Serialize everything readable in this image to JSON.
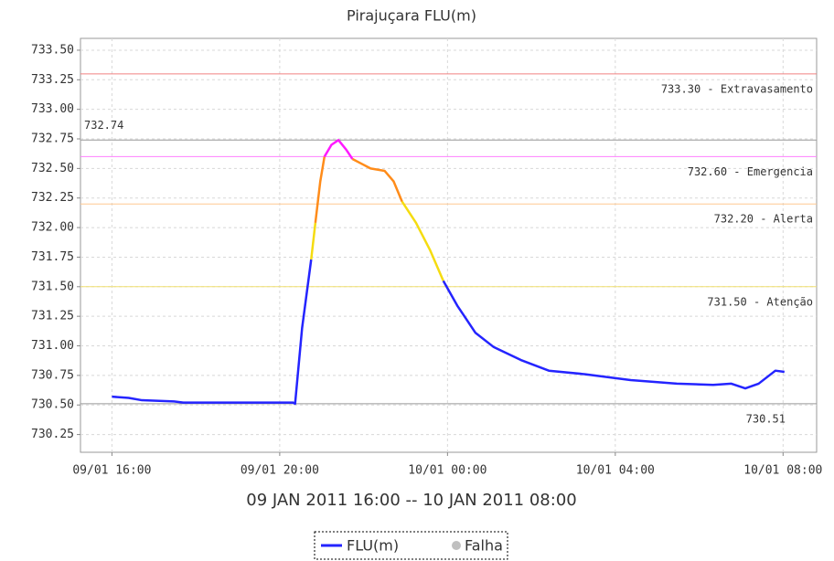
{
  "chart_data": {
    "type": "line",
    "title": "Pirajuçara FLU(m)",
    "x_label": "09 JAN 2011 16:00 -- 10 JAN 2011 08:00",
    "xlim": [
      "2011-01-09 15:15",
      "2011-01-10 08:48"
    ],
    "xticks": [
      {
        "value": "2011-01-09 16:00",
        "label": "09/01 16:00"
      },
      {
        "value": "2011-01-09 20:00",
        "label": "09/01 20:00"
      },
      {
        "value": "2011-01-10 00:00",
        "label": "10/01 00:00"
      },
      {
        "value": "2011-01-10 04:00",
        "label": "10/01 04:00"
      },
      {
        "value": "2011-01-10 08:00",
        "label": "10/01 08:00"
      }
    ],
    "ylim": [
      730.1,
      733.6
    ],
    "yticks": [
      {
        "value": 730.25,
        "label": "730.25"
      },
      {
        "value": 730.5,
        "label": "730.50"
      },
      {
        "value": 730.75,
        "label": "730.75"
      },
      {
        "value": 731,
        "label": "731.00"
      },
      {
        "value": 731.25,
        "label": "731.25"
      },
      {
        "value": 731.5,
        "label": "731.50"
      },
      {
        "value": 731.75,
        "label": "731.75"
      },
      {
        "value": 732,
        "label": "732.00"
      },
      {
        "value": 732.25,
        "label": "732.25"
      },
      {
        "value": 732.5,
        "label": "732.50"
      },
      {
        "value": 732.75,
        "label": "732.75"
      },
      {
        "value": 733,
        "label": "733.00"
      },
      {
        "value": 733.25,
        "label": "733.25"
      },
      {
        "value": 733.5,
        "label": "733.50"
      }
    ],
    "grid": true,
    "thresholds": [
      {
        "value": 731.5,
        "label": "731.50 - Atenção",
        "color": "#f0e070",
        "series_color": "#f5dc10"
      },
      {
        "value": 732.2,
        "label": "732.20 - Alerta",
        "color": "#ffc890",
        "series_color": "#ff8c1a"
      },
      {
        "value": 732.6,
        "label": "732.60 - Emergencia",
        "color": "#ff80ff",
        "series_color": "#ff1aff"
      },
      {
        "value": 733.3,
        "label": "733.30 - Extravasamento",
        "color": "#f08080",
        "series_color": "#ff0000"
      }
    ],
    "max_line": 732.74,
    "min_line": 730.51,
    "legend": [
      "FLU(m)",
      "Falha"
    ],
    "falha_color": "#c0c0c0",
    "series": [
      {
        "name": "FLU(m)",
        "color": "#2424ff",
        "x": [
          "2011-01-09 16:00",
          "2011-01-09 16:24",
          "2011-01-09 16:43",
          "2011-01-09 17:29",
          "2011-01-09 17:42",
          "2011-01-09 20:19",
          "2011-01-09 20:22",
          "2011-01-09 20:32",
          "2011-01-09 20:45",
          "2011-01-09 20:51",
          "2011-01-09 20:58",
          "2011-01-09 21:04",
          "2011-01-09 21:14",
          "2011-01-09 21:24",
          "2011-01-09 21:35",
          "2011-01-09 21:44",
          "2011-01-09 21:57",
          "2011-01-09 22:10",
          "2011-01-09 22:30",
          "2011-01-09 22:43",
          "2011-01-09 22:55",
          "2011-01-09 23:15",
          "2011-01-09 23:35",
          "2011-01-09 23:54",
          "2011-01-10 00:14",
          "2011-01-10 00:40",
          "2011-01-10 01:06",
          "2011-01-10 01:45",
          "2011-01-10 02:25",
          "2011-01-10 03:17",
          "2011-01-10 04:22",
          "2011-01-10 05:28",
          "2011-01-10 06:20",
          "2011-01-10 06:46",
          "2011-01-10 07:06",
          "2011-01-10 07:25",
          "2011-01-10 07:49",
          "2011-01-10 08:02"
        ],
        "values": [
          730.57,
          730.56,
          730.54,
          730.53,
          730.52,
          730.52,
          730.51,
          731.15,
          731.73,
          732.04,
          732.39,
          732.6,
          732.7,
          732.74,
          732.66,
          732.58,
          732.54,
          732.5,
          732.48,
          732.39,
          732.22,
          732.04,
          731.81,
          731.55,
          731.34,
          731.11,
          730.99,
          730.88,
          730.79,
          730.76,
          730.71,
          730.68,
          730.67,
          730.68,
          730.64,
          730.68,
          730.79,
          730.78
        ]
      }
    ]
  }
}
